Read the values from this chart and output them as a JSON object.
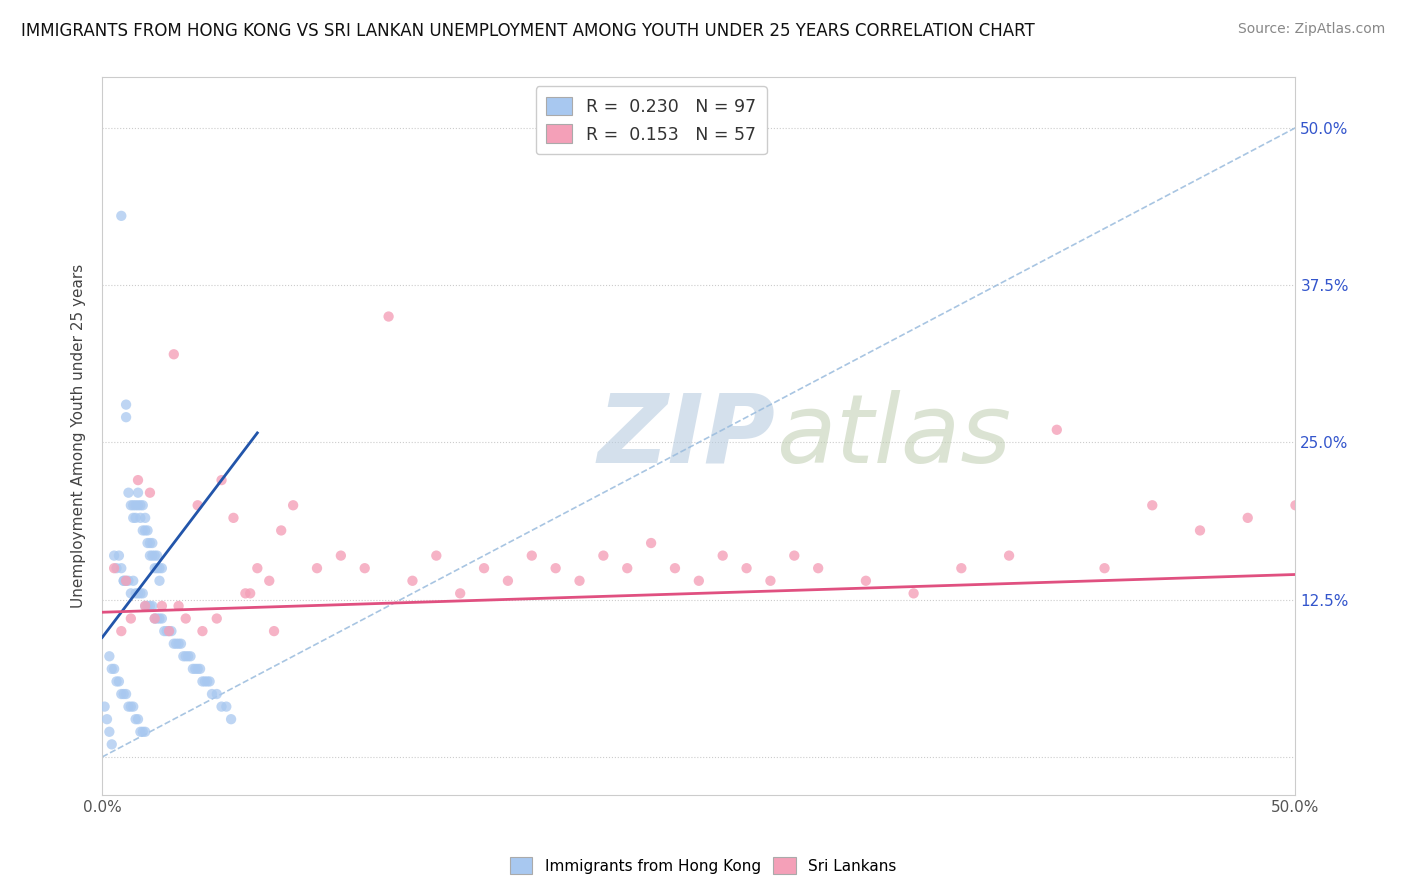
{
  "title": "IMMIGRANTS FROM HONG KONG VS SRI LANKAN UNEMPLOYMENT AMONG YOUTH UNDER 25 YEARS CORRELATION CHART",
  "source": "Source: ZipAtlas.com",
  "ylabel": "Unemployment Among Youth under 25 years",
  "xlim": [
    0.0,
    0.5
  ],
  "ylim": [
    -0.03,
    0.54
  ],
  "legend_hk_r": "0.230",
  "legend_hk_n": "97",
  "legend_sl_r": "0.153",
  "legend_sl_n": "57",
  "hk_color": "#a8c8f0",
  "sl_color": "#f4a0b8",
  "hk_line_color": "#2255aa",
  "sl_line_color": "#e05080",
  "diag_line_color": "#99bbdd",
  "watermark_zip": "ZIP",
  "watermark_atlas": "atlas",
  "watermark_zip_color": "#b0c8e0",
  "watermark_atlas_color": "#c8d8b8",
  "background_color": "#ffffff",
  "hk_scatter_x": [
    0.008,
    0.01,
    0.01,
    0.011,
    0.012,
    0.013,
    0.013,
    0.014,
    0.014,
    0.015,
    0.015,
    0.016,
    0.016,
    0.017,
    0.017,
    0.018,
    0.018,
    0.019,
    0.019,
    0.02,
    0.02,
    0.021,
    0.021,
    0.022,
    0.022,
    0.023,
    0.023,
    0.024,
    0.024,
    0.025,
    0.005,
    0.006,
    0.007,
    0.008,
    0.009,
    0.009,
    0.01,
    0.011,
    0.012,
    0.013,
    0.014,
    0.015,
    0.016,
    0.017,
    0.018,
    0.019,
    0.02,
    0.021,
    0.022,
    0.023,
    0.024,
    0.025,
    0.026,
    0.027,
    0.028,
    0.029,
    0.03,
    0.031,
    0.032,
    0.033,
    0.034,
    0.035,
    0.036,
    0.037,
    0.038,
    0.039,
    0.04,
    0.041,
    0.042,
    0.043,
    0.044,
    0.045,
    0.046,
    0.048,
    0.05,
    0.052,
    0.054,
    0.003,
    0.004,
    0.005,
    0.006,
    0.007,
    0.008,
    0.009,
    0.01,
    0.011,
    0.012,
    0.013,
    0.014,
    0.015,
    0.016,
    0.017,
    0.018,
    0.001,
    0.002,
    0.003,
    0.004
  ],
  "hk_scatter_y": [
    0.43,
    0.28,
    0.27,
    0.21,
    0.2,
    0.2,
    0.19,
    0.2,
    0.19,
    0.21,
    0.2,
    0.2,
    0.19,
    0.2,
    0.18,
    0.19,
    0.18,
    0.17,
    0.18,
    0.17,
    0.16,
    0.17,
    0.16,
    0.16,
    0.15,
    0.16,
    0.15,
    0.15,
    0.14,
    0.15,
    0.16,
    0.15,
    0.16,
    0.15,
    0.14,
    0.14,
    0.14,
    0.14,
    0.13,
    0.14,
    0.13,
    0.13,
    0.13,
    0.13,
    0.12,
    0.12,
    0.12,
    0.12,
    0.11,
    0.11,
    0.11,
    0.11,
    0.1,
    0.1,
    0.1,
    0.1,
    0.09,
    0.09,
    0.09,
    0.09,
    0.08,
    0.08,
    0.08,
    0.08,
    0.07,
    0.07,
    0.07,
    0.07,
    0.06,
    0.06,
    0.06,
    0.06,
    0.05,
    0.05,
    0.04,
    0.04,
    0.03,
    0.08,
    0.07,
    0.07,
    0.06,
    0.06,
    0.05,
    0.05,
    0.05,
    0.04,
    0.04,
    0.04,
    0.03,
    0.03,
    0.02,
    0.02,
    0.02,
    0.04,
    0.03,
    0.02,
    0.01
  ],
  "sl_scatter_x": [
    0.005,
    0.01,
    0.015,
    0.02,
    0.025,
    0.03,
    0.035,
    0.04,
    0.05,
    0.055,
    0.06,
    0.065,
    0.07,
    0.075,
    0.08,
    0.09,
    0.1,
    0.11,
    0.12,
    0.13,
    0.14,
    0.15,
    0.16,
    0.17,
    0.18,
    0.19,
    0.2,
    0.21,
    0.22,
    0.23,
    0.24,
    0.25,
    0.26,
    0.27,
    0.28,
    0.29,
    0.3,
    0.32,
    0.34,
    0.36,
    0.38,
    0.4,
    0.42,
    0.44,
    0.46,
    0.48,
    0.5,
    0.008,
    0.012,
    0.018,
    0.022,
    0.028,
    0.032,
    0.042,
    0.048,
    0.062,
    0.072
  ],
  "sl_scatter_y": [
    0.15,
    0.14,
    0.22,
    0.21,
    0.12,
    0.32,
    0.11,
    0.2,
    0.22,
    0.19,
    0.13,
    0.15,
    0.14,
    0.18,
    0.2,
    0.15,
    0.16,
    0.15,
    0.35,
    0.14,
    0.16,
    0.13,
    0.15,
    0.14,
    0.16,
    0.15,
    0.14,
    0.16,
    0.15,
    0.17,
    0.15,
    0.14,
    0.16,
    0.15,
    0.14,
    0.16,
    0.15,
    0.14,
    0.13,
    0.15,
    0.16,
    0.26,
    0.15,
    0.2,
    0.18,
    0.19,
    0.2,
    0.1,
    0.11,
    0.12,
    0.11,
    0.1,
    0.12,
    0.1,
    0.11,
    0.13,
    0.1
  ],
  "hk_line_x": [
    0.0,
    0.06
  ],
  "hk_line_y_intercept": 0.095,
  "hk_line_slope": 2.5,
  "sl_line_x": [
    0.0,
    0.5
  ],
  "sl_line_y_intercept": 0.115,
  "sl_line_slope": 0.06,
  "diag_line_x": [
    0.0,
    0.5
  ],
  "diag_line_y_start": 0.0,
  "diag_line_y_end": 0.5
}
